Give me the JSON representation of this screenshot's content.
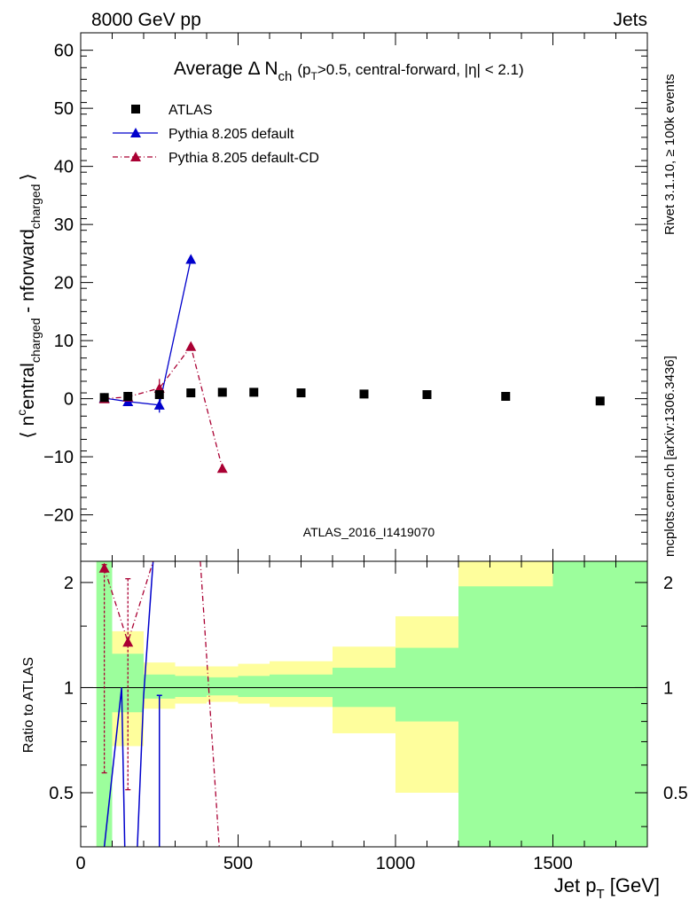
{
  "header": {
    "energy": "8000 GeV pp",
    "category": "Jets"
  },
  "side_labels": {
    "rivet": "Rivet 3.1.10, ≥ 100k events",
    "source": "mcplots.cern.ch [arXiv:1306.3436]"
  },
  "chart_data": [
    {
      "type": "scatter",
      "id": "main",
      "title_main": "Average Δ N",
      "title_sub": "ch",
      "title_cond": "(p",
      "title_cond_sub": "T",
      "title_cond_rest": ">0.5, central-forward, |η| < 2.1)",
      "ylabel": "⟨ n^central_charged - n^forward_charged ⟩",
      "ylabel_parts": {
        "open": "⟨",
        "n1": "n",
        "sup1": "c",
        "word1": "entral",
        "sub1": "charged",
        "minus": " - n",
        "word2": "forward",
        "sub2": "charged",
        "close": "⟩"
      },
      "ylim": [
        -28,
        63
      ],
      "yticks": [
        -20,
        -10,
        0,
        10,
        20,
        30,
        40,
        50,
        60
      ],
      "xlim": [
        0,
        1800
      ],
      "watermark": "ATLAS_2016_I1419070",
      "legend": [
        {
          "name": "ATLAS",
          "marker": "square",
          "color": "#000000"
        },
        {
          "name": "Pythia 8.205 default",
          "marker": "triangle",
          "color": "#0000cc"
        },
        {
          "name": "Pythia 8.205 default-CD",
          "marker": "triangle",
          "color": "#aa0033"
        }
      ],
      "series": [
        {
          "name": "ATLAS",
          "x": [
            75,
            150,
            250,
            350,
            450,
            550,
            700,
            900,
            1100,
            1350,
            1650
          ],
          "y": [
            0.2,
            0.4,
            0.7,
            1.0,
            1.1,
            1.1,
            1.0,
            0.8,
            0.7,
            0.4,
            -0.4
          ]
        },
        {
          "name": "Pythia 8.205 default",
          "x": [
            75,
            150,
            250,
            350
          ],
          "y": [
            0.1,
            -0.5,
            -1.1,
            24.0
          ],
          "err": [
            0.3,
            0.4,
            1.3,
            0.0
          ]
        },
        {
          "name": "Pythia 8.205 default-CD",
          "x": [
            75,
            150,
            250,
            350,
            450
          ],
          "y": [
            0.0,
            0.3,
            1.8,
            9.0,
            -12.0
          ],
          "err": [
            0.2,
            0.4,
            1.6,
            0.0,
            0.0
          ]
        }
      ]
    },
    {
      "type": "ratio",
      "id": "ratio",
      "ylabel": "Ratio to ATLAS",
      "ylim": [
        0.35,
        2.3
      ],
      "yticks": [
        0.5,
        1,
        2
      ],
      "ytick_labels": [
        "0.5",
        "1",
        "2"
      ],
      "xlim": [
        0,
        1800
      ],
      "xticks": [
        0,
        500,
        1000,
        1500
      ],
      "xtick_labels": [
        "0",
        "500",
        "1000",
        "1500"
      ],
      "xlabel_main": "Jet p",
      "xlabel_sub": "T",
      "xlabel_unit": " [GeV]",
      "bands": [
        {
          "x0": 50,
          "x1": 100,
          "g_lo": 0.35,
          "g_hi": 2.3,
          "y_lo": 0.35,
          "y_hi": 2.3
        },
        {
          "x0": 100,
          "x1": 200,
          "g_lo": 0.85,
          "g_hi": 1.25,
          "y_lo": 0.68,
          "y_hi": 1.45
        },
        {
          "x0": 200,
          "x1": 300,
          "g_lo": 0.93,
          "g_hi": 1.09,
          "y_lo": 0.87,
          "y_hi": 1.18
        },
        {
          "x0": 300,
          "x1": 400,
          "g_lo": 0.94,
          "g_hi": 1.08,
          "y_lo": 0.9,
          "y_hi": 1.15
        },
        {
          "x0": 400,
          "x1": 500,
          "g_lo": 0.95,
          "g_hi": 1.07,
          "y_lo": 0.91,
          "y_hi": 1.15
        },
        {
          "x0": 500,
          "x1": 600,
          "g_lo": 0.94,
          "g_hi": 1.08,
          "y_lo": 0.9,
          "y_hi": 1.17
        },
        {
          "x0": 600,
          "x1": 800,
          "g_lo": 0.94,
          "g_hi": 1.09,
          "y_lo": 0.88,
          "y_hi": 1.19
        },
        {
          "x0": 800,
          "x1": 1000,
          "g_lo": 0.88,
          "g_hi": 1.14,
          "y_lo": 0.74,
          "y_hi": 1.31
        },
        {
          "x0": 1000,
          "x1": 1200,
          "g_lo": 0.8,
          "g_hi": 1.3,
          "y_lo": 0.5,
          "y_hi": 1.6
        },
        {
          "x0": 1200,
          "x1": 1500,
          "g_lo": 0.35,
          "g_hi": 1.95,
          "y_lo": 0.35,
          "y_hi": 2.3
        },
        {
          "x0": 1500,
          "x1": 1800,
          "g_lo": 0.35,
          "g_hi": 2.3,
          "y_lo": 0.35,
          "y_hi": 2.3
        }
      ],
      "series": [
        {
          "name": "Pythia 8.205 default",
          "points": [
            [
              75,
              0.35
            ],
            [
              130,
              1.0
            ],
            [
              140,
              0.35
            ]
          ],
          "extra_line": [
            [
              180,
              0.35
            ],
            [
              200,
              0.95
            ],
            [
              230,
              2.3
            ]
          ],
          "errbar": {
            "x": 250,
            "lo": 0.35,
            "hi": 0.95
          }
        },
        {
          "name": "Pythia 8.205 default-CD",
          "points": [
            [
              75,
              2.2
            ],
            [
              150,
              1.35
            ],
            [
              230,
              2.3
            ]
          ],
          "extra_line": [
            [
              380,
              2.3
            ],
            [
              440,
              0.35
            ]
          ],
          "markers": [
            [
              75,
              2.2
            ],
            [
              150,
              1.35
            ]
          ],
          "errbars": [
            {
              "x": 75,
              "lo": 0.57,
              "hi": 2.25
            },
            {
              "x": 150,
              "lo": 0.51,
              "hi": 2.05
            }
          ]
        }
      ]
    }
  ],
  "colors": {
    "atlas": "#000000",
    "default": "#0000cc",
    "cd": "#aa0033",
    "green_band": "#9cfe9c",
    "yellow_band": "#fefe9c",
    "side_text": "#888888",
    "watermark": "#999999"
  }
}
